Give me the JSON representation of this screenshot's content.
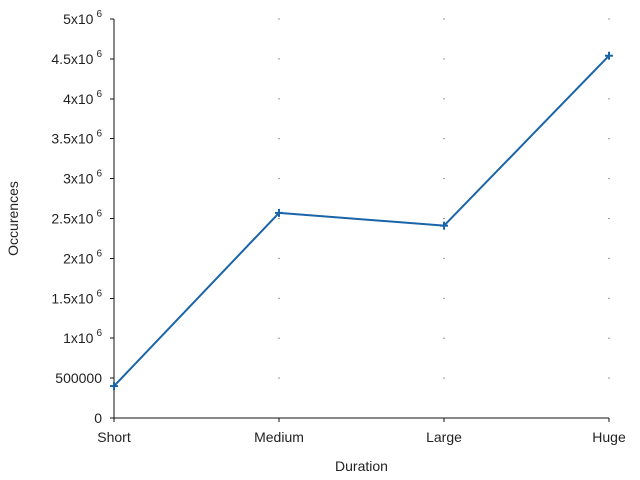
{
  "chart_data": {
    "type": "line",
    "title": "",
    "xlabel": "Duration",
    "ylabel": "Occurences",
    "categories": [
      "Short",
      "Medium",
      "Large",
      "Huge"
    ],
    "series": [
      {
        "values": [
          400000,
          2570000,
          2410000,
          4540000
        ],
        "color": "#1a64a8",
        "marker": "plus"
      }
    ],
    "ylim": [
      0,
      5000000
    ],
    "yticks": [
      {
        "value": 0,
        "base": "0",
        "exp": ""
      },
      {
        "value": 500000,
        "base": "500000",
        "exp": ""
      },
      {
        "value": 1000000,
        "base": "1x10",
        "exp": "6"
      },
      {
        "value": 1500000,
        "base": "1.5x10",
        "exp": "6"
      },
      {
        "value": 2000000,
        "base": "2x10",
        "exp": "6"
      },
      {
        "value": 2500000,
        "base": "2.5x10",
        "exp": "6"
      },
      {
        "value": 3000000,
        "base": "3x10",
        "exp": "6"
      },
      {
        "value": 3500000,
        "base": "3.5x10",
        "exp": "6"
      },
      {
        "value": 4000000,
        "base": "4x10",
        "exp": "6"
      },
      {
        "value": 4500000,
        "base": "4.5x10",
        "exp": "6"
      },
      {
        "value": 5000000,
        "base": "5x10",
        "exp": "6"
      }
    ],
    "grid": "dots",
    "legend": "none"
  }
}
